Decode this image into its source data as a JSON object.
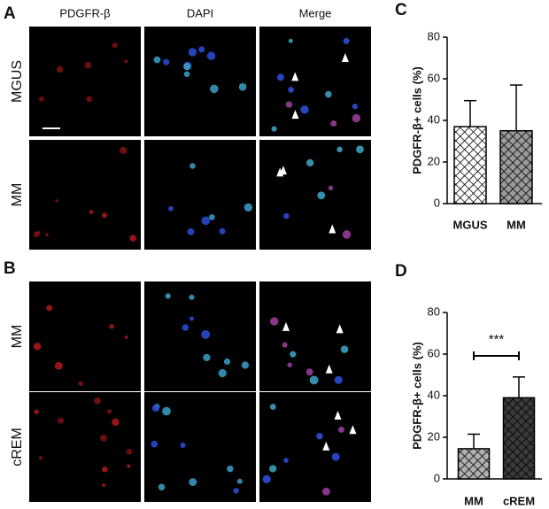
{
  "figure": {
    "panels": [
      {
        "label": "A",
        "columns": [
          "PDGFR-β",
          "DAPI",
          "Merge"
        ],
        "rows": [
          "MGUS",
          "MM"
        ]
      },
      {
        "label": "B",
        "rows": [
          "MM",
          "cREM"
        ]
      }
    ]
  },
  "chart_data": [
    {
      "type": "bar",
      "panel": "C",
      "ylabel": "PDGFR-β+ cells (%)",
      "categories": [
        "MGUS",
        "MM"
      ],
      "values": [
        37,
        35
      ],
      "errors": [
        12.5,
        22
      ],
      "colors": [
        "#ffffff",
        "#9a9a9a"
      ],
      "ylim": [
        0,
        80
      ],
      "yticks": [
        0,
        20,
        40,
        60,
        80
      ]
    },
    {
      "type": "bar",
      "panel": "D",
      "ylabel": "PDGFR-β+ cells (%)",
      "categories": [
        "MM",
        "cREM"
      ],
      "values": [
        14.5,
        39
      ],
      "errors": [
        7,
        10
      ],
      "colors": [
        "#b0b0b0",
        "#3a3a3a"
      ],
      "ylim": [
        0,
        80
      ],
      "yticks": [
        0,
        20,
        40,
        60,
        80
      ],
      "annotation": "***"
    }
  ]
}
